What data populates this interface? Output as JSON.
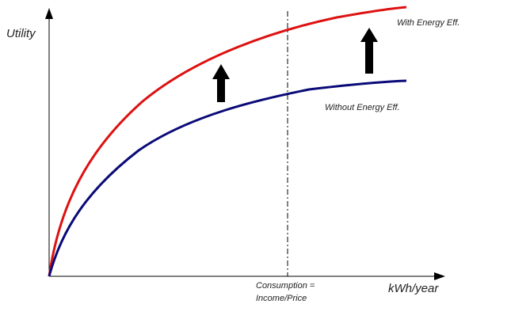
{
  "diagram": {
    "y_axis_label": "Utility",
    "x_axis_label": "kWh/year",
    "consumption_label_line1": "Consumption =",
    "consumption_label_line2": "Income/Price",
    "curve_with_label": "With Energy Eff.",
    "curve_without_label": "Without Energy Eff.",
    "curve_with_color": "#dd1111",
    "curve_without_color": "#0a0a78",
    "axis_color": "#000000",
    "arrow_color": "#000000",
    "guide_line_style": "dash-dot",
    "arrows": "two upward arrows indicating the curve shift"
  }
}
